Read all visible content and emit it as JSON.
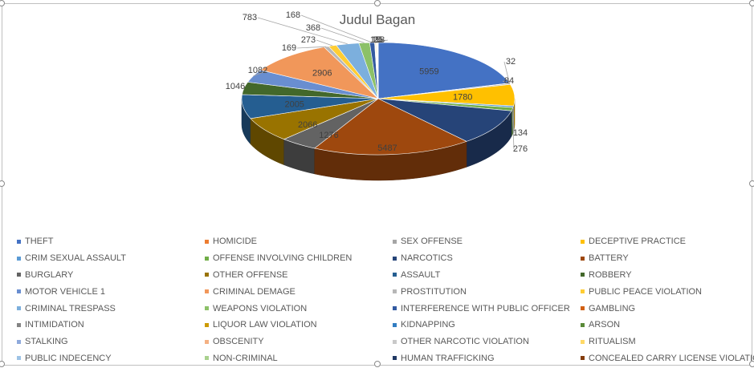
{
  "chart_data": {
    "type": "pie",
    "title": "Judul Bagan",
    "three_d": true,
    "legend_position": "bottom",
    "slices": [
      {
        "name": "THEFT",
        "value": 5959,
        "color": "#4472c4"
      },
      {
        "name": "HOMICIDE",
        "value": 32,
        "color": "#ed7d31"
      },
      {
        "name": "SEX OFFENSE",
        "value": 84,
        "color": "#a5a5a5"
      },
      {
        "name": "DECEPTIVE PRACTICE",
        "value": 1780,
        "color": "#ffc000"
      },
      {
        "name": "CRIM SEXUAL ASSAULT",
        "value": 134,
        "color": "#5b9bd5"
      },
      {
        "name": "OFFENSE INVOLVING CHILDREN",
        "value": 276,
        "color": "#70ad47"
      },
      {
        "name": "NARCOTICS",
        "value": 2990,
        "color": "#264478"
      },
      {
        "name": "BATTERY",
        "value": 5487,
        "color": "#9e480e"
      },
      {
        "name": "BURGLARY",
        "value": 1276,
        "color": "#636363"
      },
      {
        "name": "OTHER OFFENSE",
        "value": 2066,
        "color": "#997300"
      },
      {
        "name": "ASSAULT",
        "value": 2005,
        "color": "#255e91"
      },
      {
        "name": "ROBBERY",
        "value": 1046,
        "color": "#43682b"
      },
      {
        "name": "MOTOR VEHICLE 1",
        "value": 1082,
        "color": "#698ed0"
      },
      {
        "name": "CRIMINAL DEMAGE",
        "value": 2906,
        "color": "#f1975a"
      },
      {
        "name": "PROSTITUTION",
        "value": 169,
        "color": "#b7b7b7"
      },
      {
        "name": "PUBLIC PEACE VIOLATION",
        "value": 273,
        "color": "#ffcd33"
      },
      {
        "name": "CRIMINAL TRESPASS",
        "value": 783,
        "color": "#7cafdd"
      },
      {
        "name": "WEAPONS VIOLATION",
        "value": 368,
        "color": "#8cc168"
      },
      {
        "name": "INTERFERENCE WITH PUBLIC OFFICER",
        "value": 168,
        "color": "#335aa1"
      },
      {
        "name": "GAMBLING",
        "value": 15,
        "color": "#d26012"
      },
      {
        "name": "INTIMIDATION",
        "value": 10,
        "color": "#848484"
      },
      {
        "name": "LIQUOR LAW VIOLATION",
        "value": 25,
        "color": "#cc9a00"
      },
      {
        "name": "KIDNAPPING",
        "value": 18,
        "color": "#327dc2"
      },
      {
        "name": "ARSON",
        "value": 12,
        "color": "#5a8a39"
      },
      {
        "name": "STALKING",
        "value": 14,
        "color": "#8faadc"
      },
      {
        "name": "OBSCENITY",
        "value": 6,
        "color": "#f4b183"
      },
      {
        "name": "OTHER NARCOTIC VIOLATION",
        "value": 3,
        "color": "#c9c9c9"
      },
      {
        "name": "RITUALISM",
        "value": 2,
        "color": "#ffd966"
      },
      {
        "name": "PUBLIC INDECENCY",
        "value": 2,
        "color": "#9dc3e6"
      },
      {
        "name": "NON-CRIMINAL",
        "value": 9,
        "color": "#a9d18e"
      },
      {
        "name": "HUMAN TRAFFICKING",
        "value": 1,
        "color": "#203864"
      },
      {
        "name": "CONCEALED CARRY LICENSE VIOLATION",
        "value": 5,
        "color": "#843c0c"
      }
    ],
    "data_labels": [
      {
        "slice": 0,
        "text": "5959"
      },
      {
        "slice": 1,
        "text": "32"
      },
      {
        "slice": 2,
        "text": "84"
      },
      {
        "slice": 3,
        "text": "1780"
      },
      {
        "slice": 4,
        "text": "134"
      },
      {
        "slice": 5,
        "text": "276"
      },
      {
        "slice": 7,
        "text": "5487"
      },
      {
        "slice": 8,
        "text": "1276"
      },
      {
        "slice": 9,
        "text": "2066"
      },
      {
        "slice": 10,
        "text": "2005"
      },
      {
        "slice": 11,
        "text": "1046"
      },
      {
        "slice": 12,
        "text": "1082"
      },
      {
        "slice": 13,
        "text": "2906"
      },
      {
        "slice": 14,
        "text": "169"
      },
      {
        "slice": 15,
        "text": "273"
      },
      {
        "slice": 16,
        "text": "783"
      },
      {
        "slice": 17,
        "text": "368"
      },
      {
        "slice": 18,
        "text": "168"
      },
      {
        "slice": 19,
        "text": "15"
      },
      {
        "slice": 20,
        "text": "10"
      },
      {
        "slice": 21,
        "text": "25"
      },
      {
        "slice": 22,
        "text": "18"
      }
    ]
  }
}
